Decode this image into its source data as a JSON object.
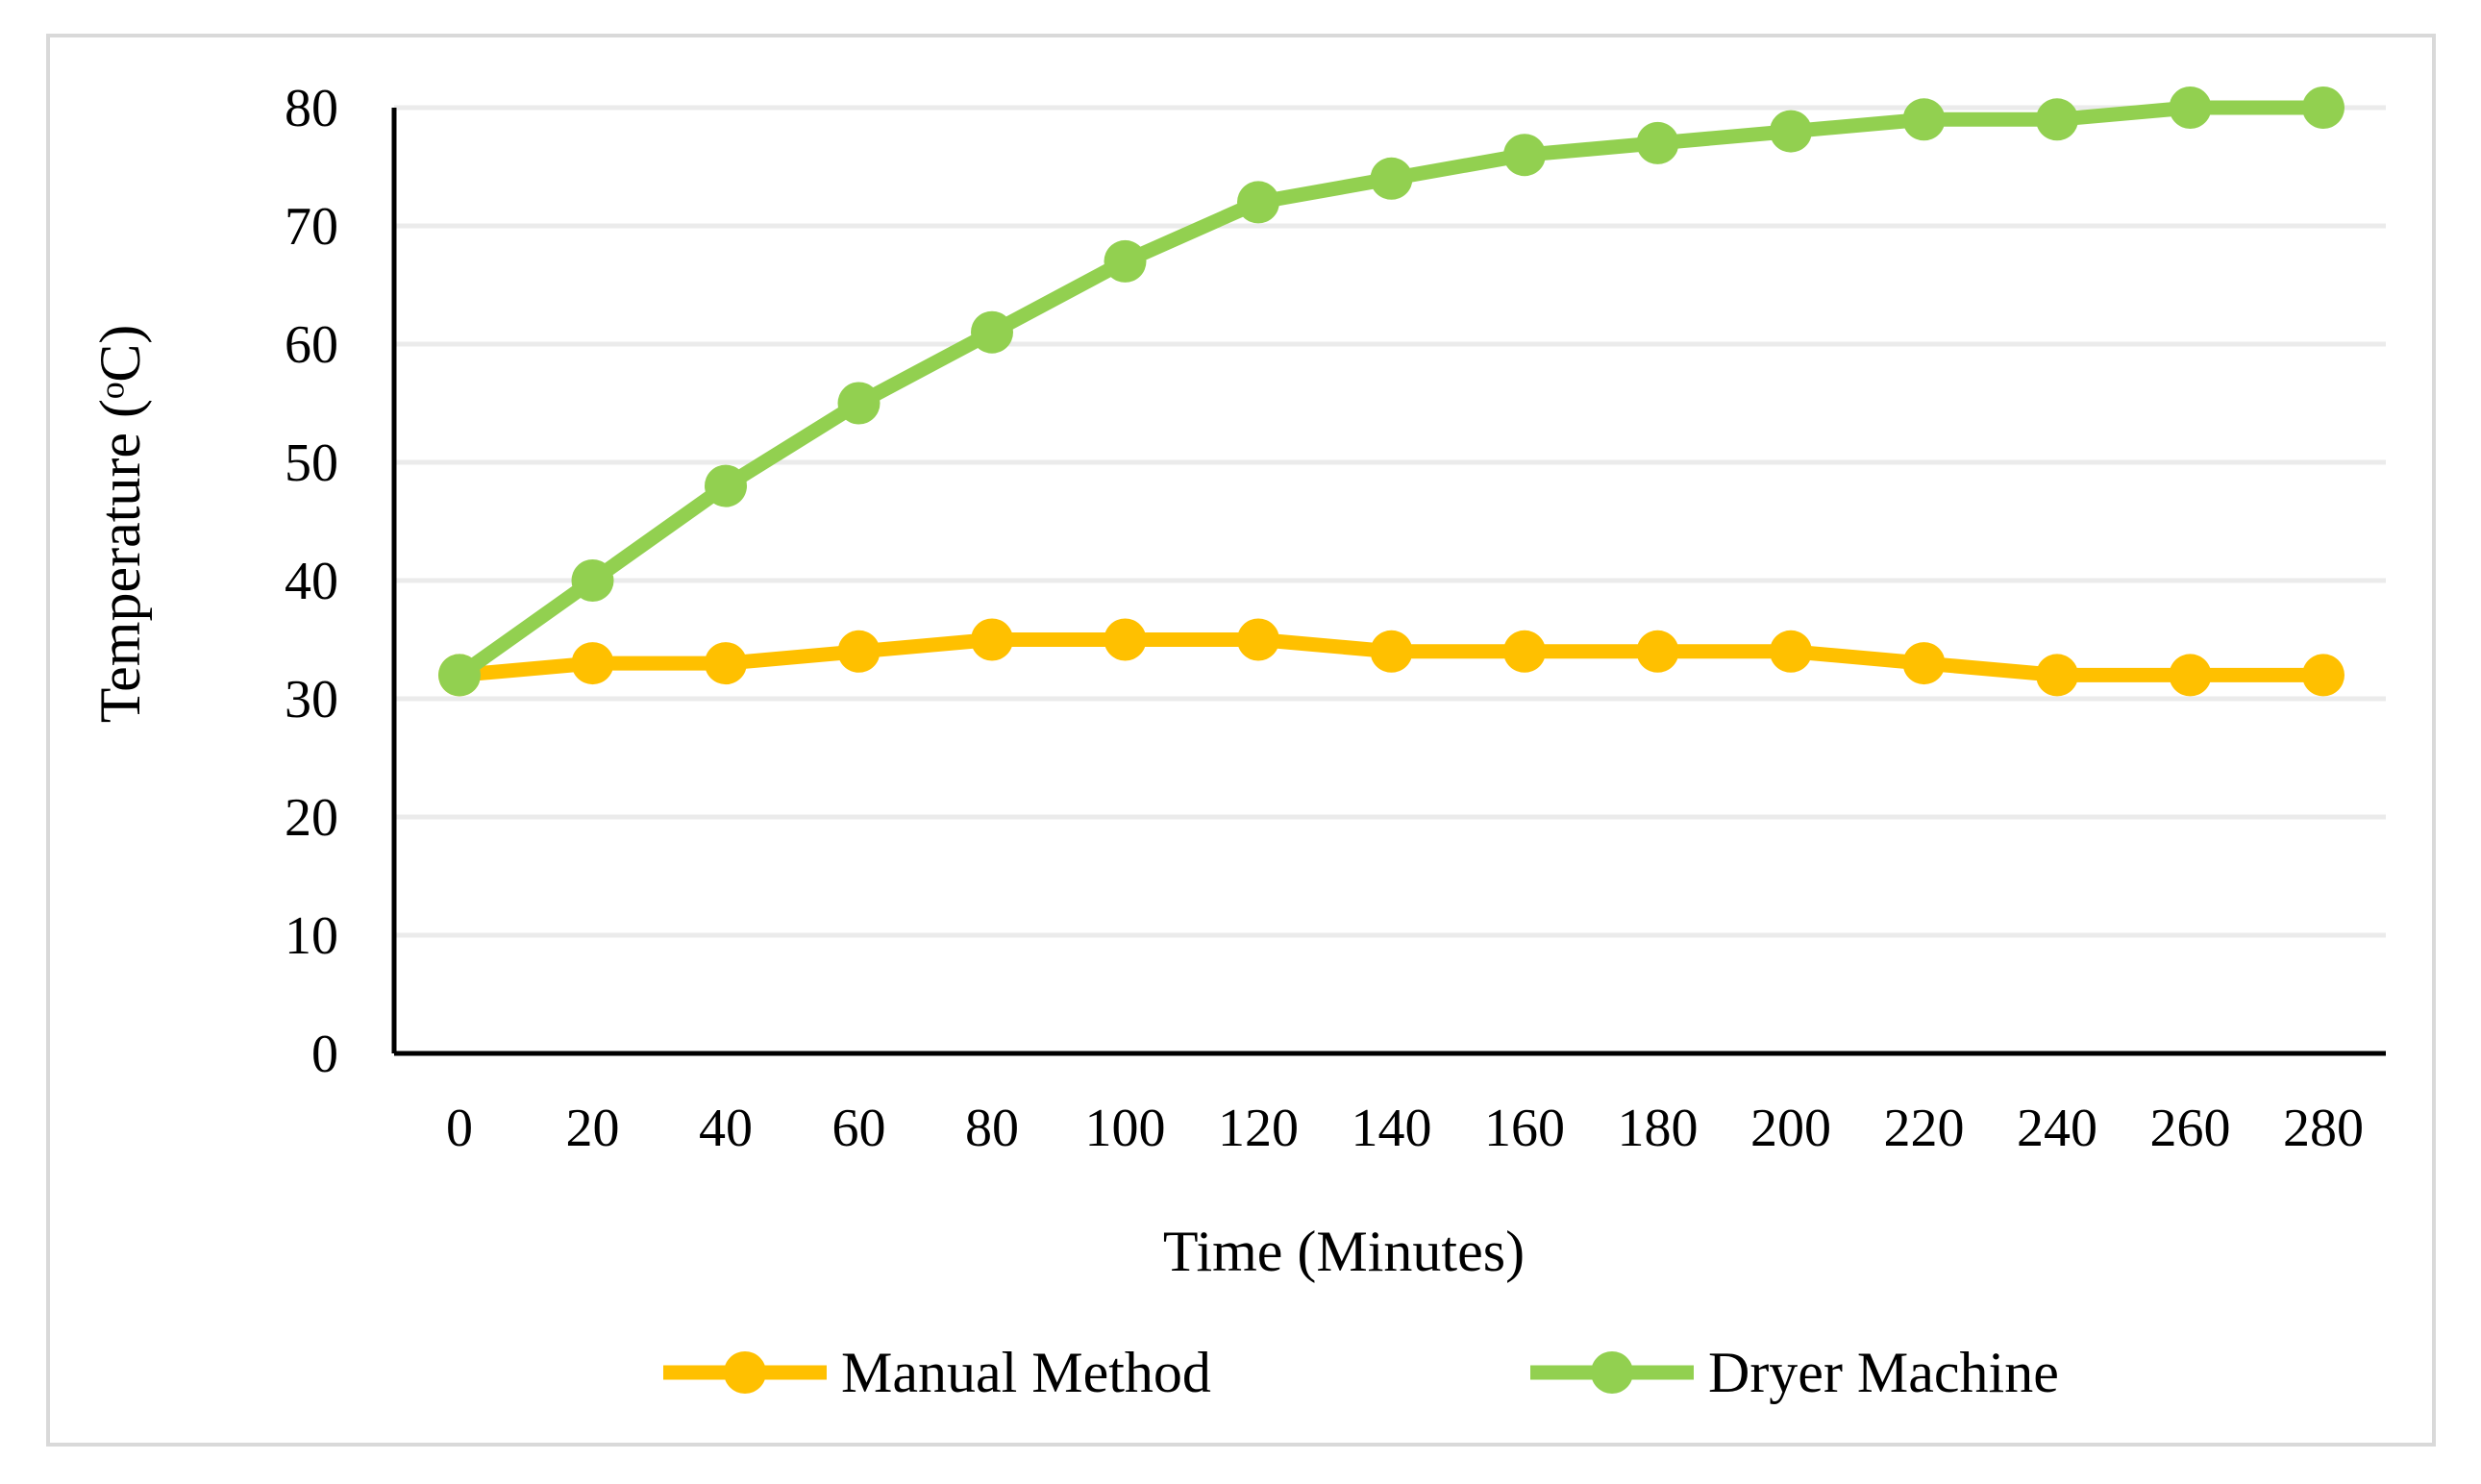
{
  "chart_data": {
    "type": "line",
    "categories": [
      "0",
      "20",
      "40",
      "60",
      "80",
      "100",
      "120",
      "140",
      "160",
      "180",
      "200",
      "220",
      "240",
      "260",
      "280"
    ],
    "series": [
      {
        "name": "Manual Method",
        "color": "#ffc000",
        "values": [
          32,
          33,
          33,
          34,
          35,
          35,
          35,
          34,
          34,
          34,
          34,
          33,
          32,
          32,
          32
        ]
      },
      {
        "name": "Dryer Machine",
        "color": "#92d050",
        "values": [
          32,
          40,
          48,
          55,
          61,
          67,
          72,
          74,
          76,
          77,
          78,
          79,
          79,
          80,
          80
        ]
      }
    ],
    "y_ticks": [
      "0",
      "10",
      "20",
      "30",
      "40",
      "50",
      "60",
      "70",
      "80"
    ],
    "ylim": [
      0,
      80
    ],
    "xlabel": "Time (Minutes)",
    "ylabel": "Temperature (ᵒC)",
    "grid": true,
    "legend_position": "bottom"
  }
}
